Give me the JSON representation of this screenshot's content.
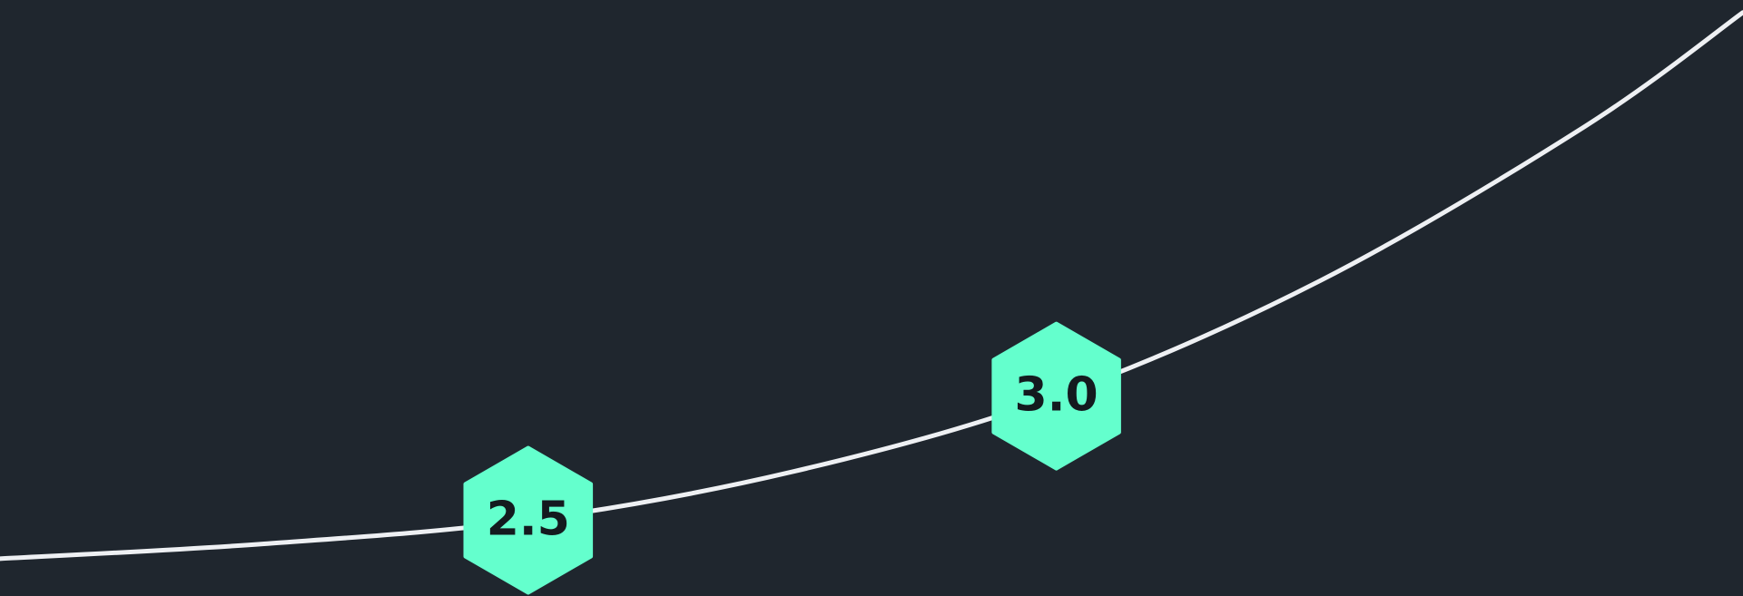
{
  "chart_data": {
    "type": "line",
    "colors": {
      "background": "#1f262e",
      "line": "#eef0f3",
      "marker_fill": "#64ffcd",
      "marker_text": "#141a1f"
    },
    "line_points": [
      {
        "x": 2.0,
        "y": 0.0
      },
      {
        "x": 2.25,
        "y": 0.6
      },
      {
        "x": 2.5,
        "y": 1.55
      },
      {
        "x": 2.75,
        "y": 3.5
      },
      {
        "x": 3.0,
        "y": 6.55
      },
      {
        "x": 3.25,
        "y": 11.2
      },
      {
        "x": 3.5,
        "y": 17.4
      },
      {
        "x": 3.65,
        "y": 22.0
      }
    ],
    "markers": [
      {
        "x": 2.5,
        "y": 1.55,
        "label": "2.5"
      },
      {
        "x": 3.0,
        "y": 6.55,
        "label": "3.0"
      }
    ],
    "xlim": [
      2.0,
      3.65
    ],
    "ylim": [
      -1.5,
      22.5
    ],
    "grid": false,
    "legend": "none"
  }
}
